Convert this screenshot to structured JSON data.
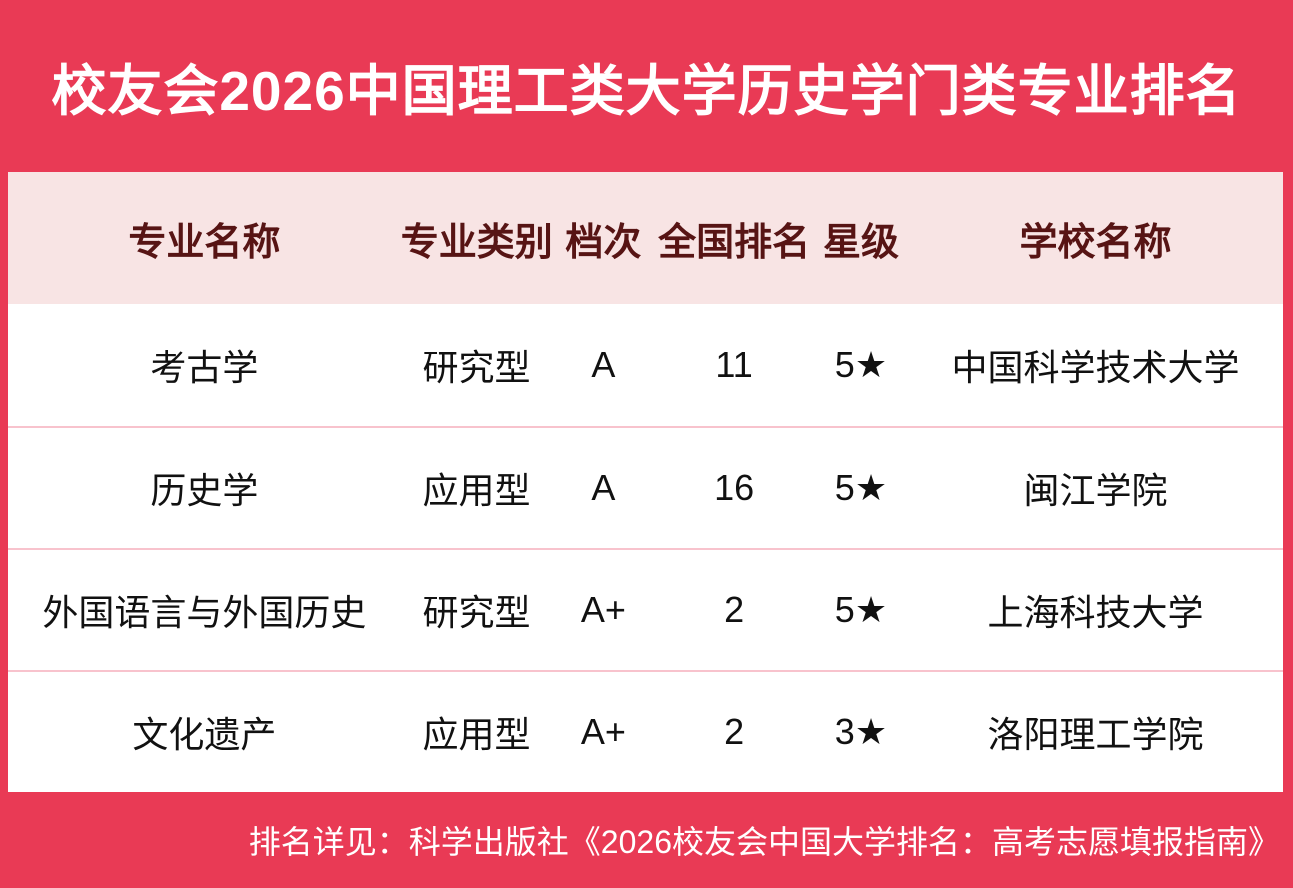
{
  "theme": {
    "background_red": "#E93A55",
    "panel_white": "#FFFFFF",
    "header_pink": "#F8E4E4",
    "header_text_maroon": "#571414",
    "row_separator_pink": "#F8C3CD",
    "title_text": "#FFFFFF",
    "body_text": "#111111"
  },
  "title": "校友会2026中国理工类大学历史学门类专业排名",
  "table": {
    "columns": [
      "专业名称",
      "专业类别",
      "档次",
      "全国排名",
      "星级",
      "学校名称"
    ],
    "rows": [
      {
        "major": "考古学",
        "category": "研究型",
        "grade": "A",
        "rank": "11",
        "stars": "5★",
        "school": "中国科学技术大学"
      },
      {
        "major": "历史学",
        "category": "应用型",
        "grade": "A",
        "rank": "16",
        "stars": "5★",
        "school": "闽江学院"
      },
      {
        "major": "外国语言与外国历史",
        "category": "研究型",
        "grade": "A+",
        "rank": "2",
        "stars": "5★",
        "school": "上海科技大学"
      },
      {
        "major": "文化遗产",
        "category": "应用型",
        "grade": "A+",
        "rank": "2",
        "stars": "3★",
        "school": "洛阳理工学院"
      }
    ]
  },
  "footer": "排名详见：科学出版社《2026校友会中国大学排名：高考志愿填报指南》"
}
